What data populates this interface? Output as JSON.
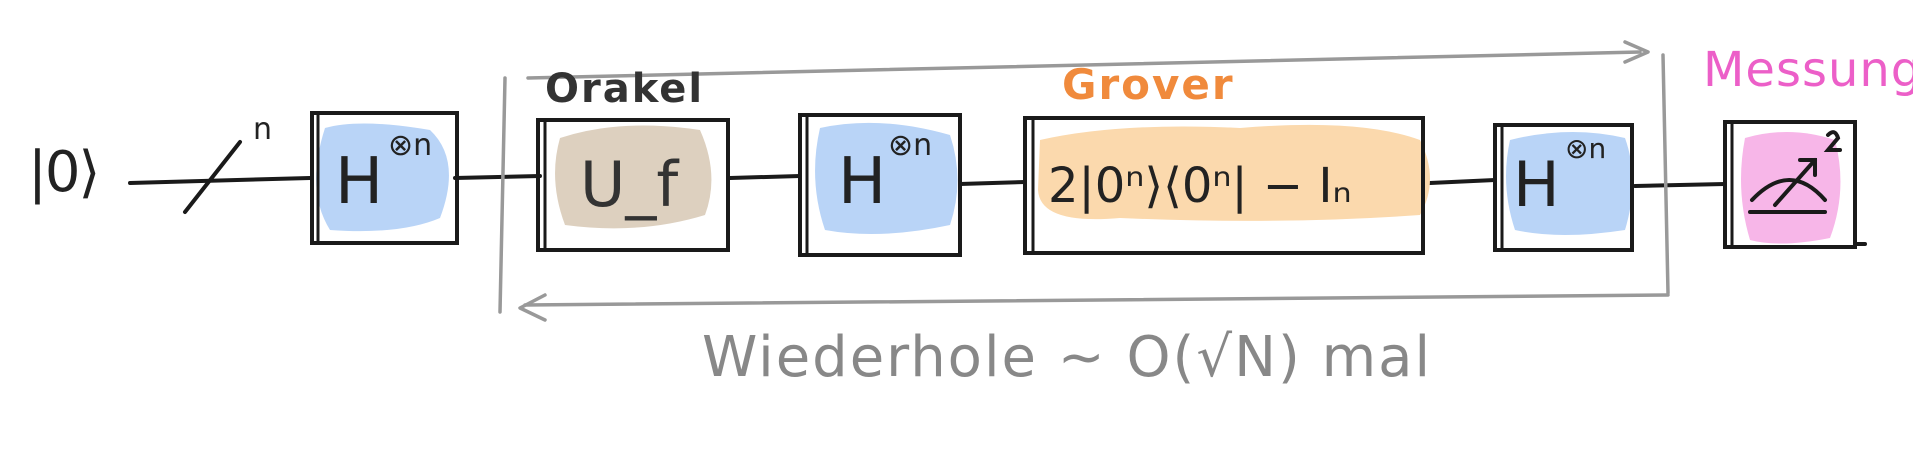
{
  "colors": {
    "hadamard_fill": "#b9d4f7",
    "oracle_fill": "#ddd0bf",
    "grover_fill": "#fbd9ad",
    "measure_fill": "#f7b6e8",
    "grover_label": "#f08a3c",
    "messung_label": "#ec5fc8",
    "loop_outline": "#999999"
  },
  "labels": {
    "input_state": "|0⟩",
    "register_size": "n",
    "orakel": "Orakel",
    "grover": "Grover",
    "messung": "Messung",
    "repeat": "Wiederhole ~ O(√N) mal"
  },
  "gates": {
    "hadamard_1": {
      "base": "H",
      "superscript": "⊗n"
    },
    "oracle": {
      "text": "U_f"
    },
    "hadamard_2": {
      "base": "H",
      "superscript": "⊗n"
    },
    "diffusion": {
      "text": "2|0ⁿ⟩⟨0ⁿ| − Iₙ"
    },
    "hadamard_3": {
      "base": "H",
      "superscript": "⊗n"
    },
    "measurement": {
      "icon": "meter-icon"
    }
  }
}
